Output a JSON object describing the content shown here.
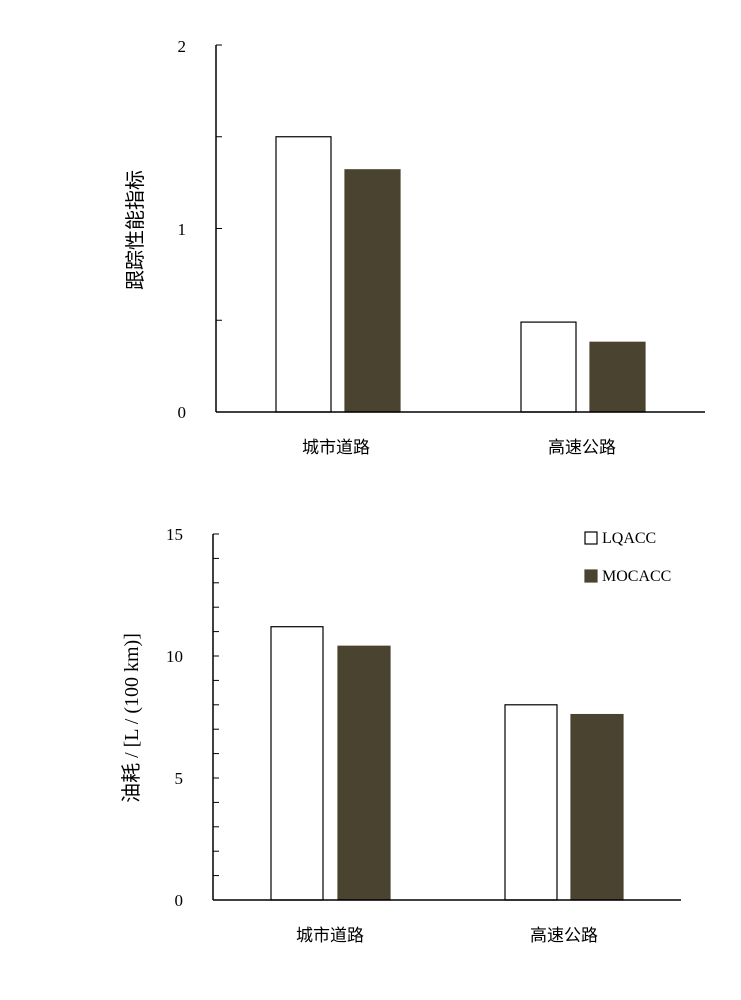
{
  "colors": {
    "lqacc": "#ffffff",
    "mocacc": "#4a432f",
    "axis": "#000000"
  },
  "chart_data": [
    {
      "type": "bar",
      "title": "",
      "xlabel": "",
      "ylabel": "跟踪性能指标",
      "categories": [
        "城市道路",
        "高速公路"
      ],
      "ylim": [
        0,
        2
      ],
      "yticks": [
        "0",
        "1",
        "2"
      ],
      "legend": null,
      "series": [
        {
          "name": "LQACC",
          "values": [
            1.5,
            0.49
          ]
        },
        {
          "name": "MOCACC",
          "values": [
            1.32,
            0.38
          ]
        }
      ]
    },
    {
      "type": "bar",
      "title": "",
      "xlabel": "",
      "ylabel": "油耗 / [L / (100 km)]",
      "categories": [
        "城市道路",
        "高速公路"
      ],
      "ylim": [
        0,
        15
      ],
      "yticks": [
        "0",
        "5",
        "10",
        "15"
      ],
      "legend": "top-right",
      "series": [
        {
          "name": "LQACC",
          "values": [
            11.2,
            8.0
          ]
        },
        {
          "name": "MOCACC",
          "values": [
            10.4,
            7.6
          ]
        }
      ]
    }
  ]
}
